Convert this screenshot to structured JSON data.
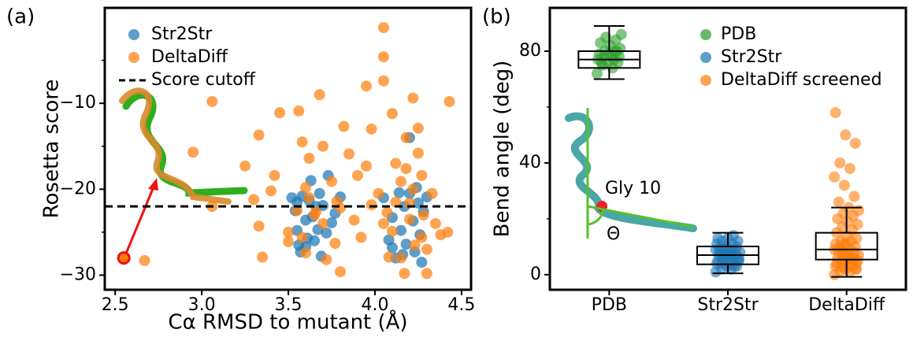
{
  "chart_data": [
    {
      "type": "scatter",
      "panel_label": "(a)",
      "x_label": "Cα RMSD to mutant (Å)",
      "y_label": "Rosetta score",
      "xlim": [
        2.44,
        4.555
      ],
      "ylim": [
        -31.7,
        1.1
      ],
      "xticks": [
        2.5,
        {
          "value": 3,
          "label": "3.0"
        },
        3.5,
        {
          "value": 4,
          "label": "4.0"
        },
        4.5
      ],
      "yticks": [
        {
          "value": -30,
          "label": "−30"
        },
        {
          "value": -20,
          "label": "−20"
        },
        {
          "value": -10,
          "label": "−10"
        }
      ],
      "yminorticks": [
        -25,
        -15,
        -5
      ],
      "cutoff": {
        "label": "Score cutoff",
        "value": -22
      },
      "highlight": {
        "x": 2.55,
        "y": -28.0
      },
      "series": [
        {
          "name": "Str2Str",
          "color": "#1f77b4",
          "x": [
            3.52,
            3.54,
            3.55,
            3.56,
            3.57,
            3.58,
            3.6,
            3.61,
            3.62,
            3.63,
            3.64,
            3.65,
            3.66,
            3.67,
            3.68,
            3.69,
            3.7,
            3.72,
            3.73,
            3.75,
            3.77,
            3.8,
            3.6,
            3.55,
            4.05,
            4.08,
            4.1,
            4.12,
            4.14,
            4.15,
            4.17,
            4.18,
            4.2,
            4.2,
            4.22,
            4.23,
            4.25,
            4.26,
            4.28,
            4.3,
            4.16,
            4.24,
            4.1,
            4.27
          ],
          "y": [
            -21.0,
            -22.5,
            -24.8,
            -26.5,
            -27.3,
            -20.8,
            -23.6,
            -25.7,
            -21.3,
            -19.0,
            -23.2,
            -26.0,
            -22.0,
            -24.7,
            -20.5,
            -27.8,
            -21.9,
            -25.1,
            -18.4,
            -23.9,
            -22.8,
            -20.9,
            -26.7,
            -21.5,
            -21.0,
            -25.9,
            -23.3,
            -28.0,
            -20.4,
            -24.8,
            -22.0,
            -26.4,
            -14.0,
            -20.5,
            -23.7,
            -27.3,
            -21.6,
            -25.3,
            -22.6,
            -20.9,
            -27.6,
            -19.8,
            -26.8,
            -28.5
          ]
        },
        {
          "name": "DeltaDiff",
          "color": "#ff7f0e",
          "x": [
            2.67,
            3.06,
            2.95,
            3.06,
            3.25,
            3.3,
            3.33,
            3.33,
            3.35,
            3.4,
            3.42,
            3.45,
            3.5,
            3.56,
            3.58,
            3.6,
            3.62,
            3.65,
            3.7,
            3.72,
            3.75,
            3.78,
            3.8,
            3.82,
            3.85,
            3.88,
            3.9,
            3.92,
            3.95,
            3.98,
            4.02,
            4.05,
            4.05,
            4.05,
            4.07,
            4.1,
            4.1,
            4.12,
            4.15,
            4.18,
            4.2,
            4.22,
            4.23,
            4.25,
            4.27,
            4.28,
            4.3,
            4.33,
            4.38,
            4.43,
            4.42,
            4.25,
            4.18,
            4.08,
            3.95,
            3.68,
            3.55,
            3.5,
            3.6,
            3.7,
            3.77,
            3.62,
            4.12,
            4.2,
            4.27,
            4.15,
            4.3,
            4.22,
            3.98,
            3.58,
            3.66,
            3.8,
            4.05,
            4.35,
            4.17
          ],
          "y": [
            -28.3,
            -9.8,
            -15.7,
            -22.0,
            -17.3,
            -21.2,
            -13.7,
            -24.3,
            -27.9,
            -20.2,
            -18.4,
            -11.1,
            -26.1,
            -10.9,
            -14.5,
            -19.8,
            -16.4,
            -23.0,
            -15.0,
            -28.2,
            -19.1,
            -21.4,
            -29.6,
            -12.7,
            -15.9,
            -23.6,
            -18.4,
            -25.6,
            -17.3,
            -13.0,
            -20.5,
            -1.2,
            -4.6,
            -7.4,
            -22.7,
            -11.2,
            -24.9,
            -17.0,
            -19.1,
            -14.0,
            -21.6,
            -9.4,
            -26.5,
            -12.9,
            -18.4,
            -23.0,
            -29.8,
            -20.5,
            -25.3,
            -9.8,
            -25.0,
            -15.8,
            -17.6,
            -27.9,
            -8.0,
            -9.0,
            -22.5,
            -25.0,
            -27.4,
            -24.0,
            -26.3,
            -21.0,
            -21.5,
            -23.5,
            -25.6,
            -28.0,
            -27.0,
            -20.0,
            -21.8,
            -25.6,
            -22.6,
            -22.2,
            -24.0,
            -24.0,
            -29.8
          ]
        }
      ]
    },
    {
      "type": "box",
      "panel_label": "(b)",
      "y_label": "Bend angle (deg)",
      "categories": [
        "PDB",
        "Str2Str",
        "DeltaDiff"
      ],
      "ylim": [
        -5.4,
        95.5
      ],
      "yticks": [
        0,
        40,
        80
      ],
      "yminorticks": [
        20,
        60
      ],
      "annotations": [
        "Gly 10",
        "Θ"
      ],
      "boxes": [
        {
          "whislo": 70,
          "q1": 74,
          "med": 77,
          "q3": 80,
          "whishi": 89
        },
        {
          "whislo": 0.5,
          "q1": 3.7,
          "med": 7,
          "q3": 10.1,
          "whishi": 15
        },
        {
          "whislo": -0.8,
          "q1": 5.4,
          "med": 9,
          "q3": 15,
          "whishi": 24
        }
      ],
      "series": [
        {
          "name": "PDB",
          "color": "#2ca02c",
          "values": [
            72,
            74,
            75,
            76,
            76,
            77,
            77,
            78,
            78,
            79,
            79,
            80,
            80,
            81,
            82,
            83,
            84,
            85,
            86,
            78,
            76,
            80
          ]
        },
        {
          "name": "Str2Str",
          "color": "#1f77b4",
          "values": [
            1,
            2,
            2,
            3,
            3,
            4,
            4,
            4,
            5,
            5,
            5,
            6,
            6,
            6,
            7,
            7,
            7,
            7,
            8,
            8,
            8,
            8,
            9,
            9,
            9,
            10,
            10,
            10,
            11,
            11,
            12,
            12,
            13,
            13,
            14,
            6,
            5,
            7,
            9,
            3
          ]
        },
        {
          "name": "DeltaDiff screened",
          "color": "#ff7f0e",
          "values": [
            0,
            1,
            1,
            2,
            2,
            3,
            3,
            3,
            4,
            4,
            4,
            5,
            5,
            5,
            6,
            6,
            6,
            7,
            7,
            7,
            8,
            8,
            8,
            9,
            9,
            10,
            10,
            11,
            11,
            12,
            12,
            13,
            14,
            15,
            16,
            17,
            18,
            19,
            20,
            21,
            22,
            23,
            24,
            26,
            28,
            32,
            35,
            38,
            40,
            47,
            50,
            58,
            6,
            9,
            2,
            11
          ]
        }
      ]
    }
  ]
}
